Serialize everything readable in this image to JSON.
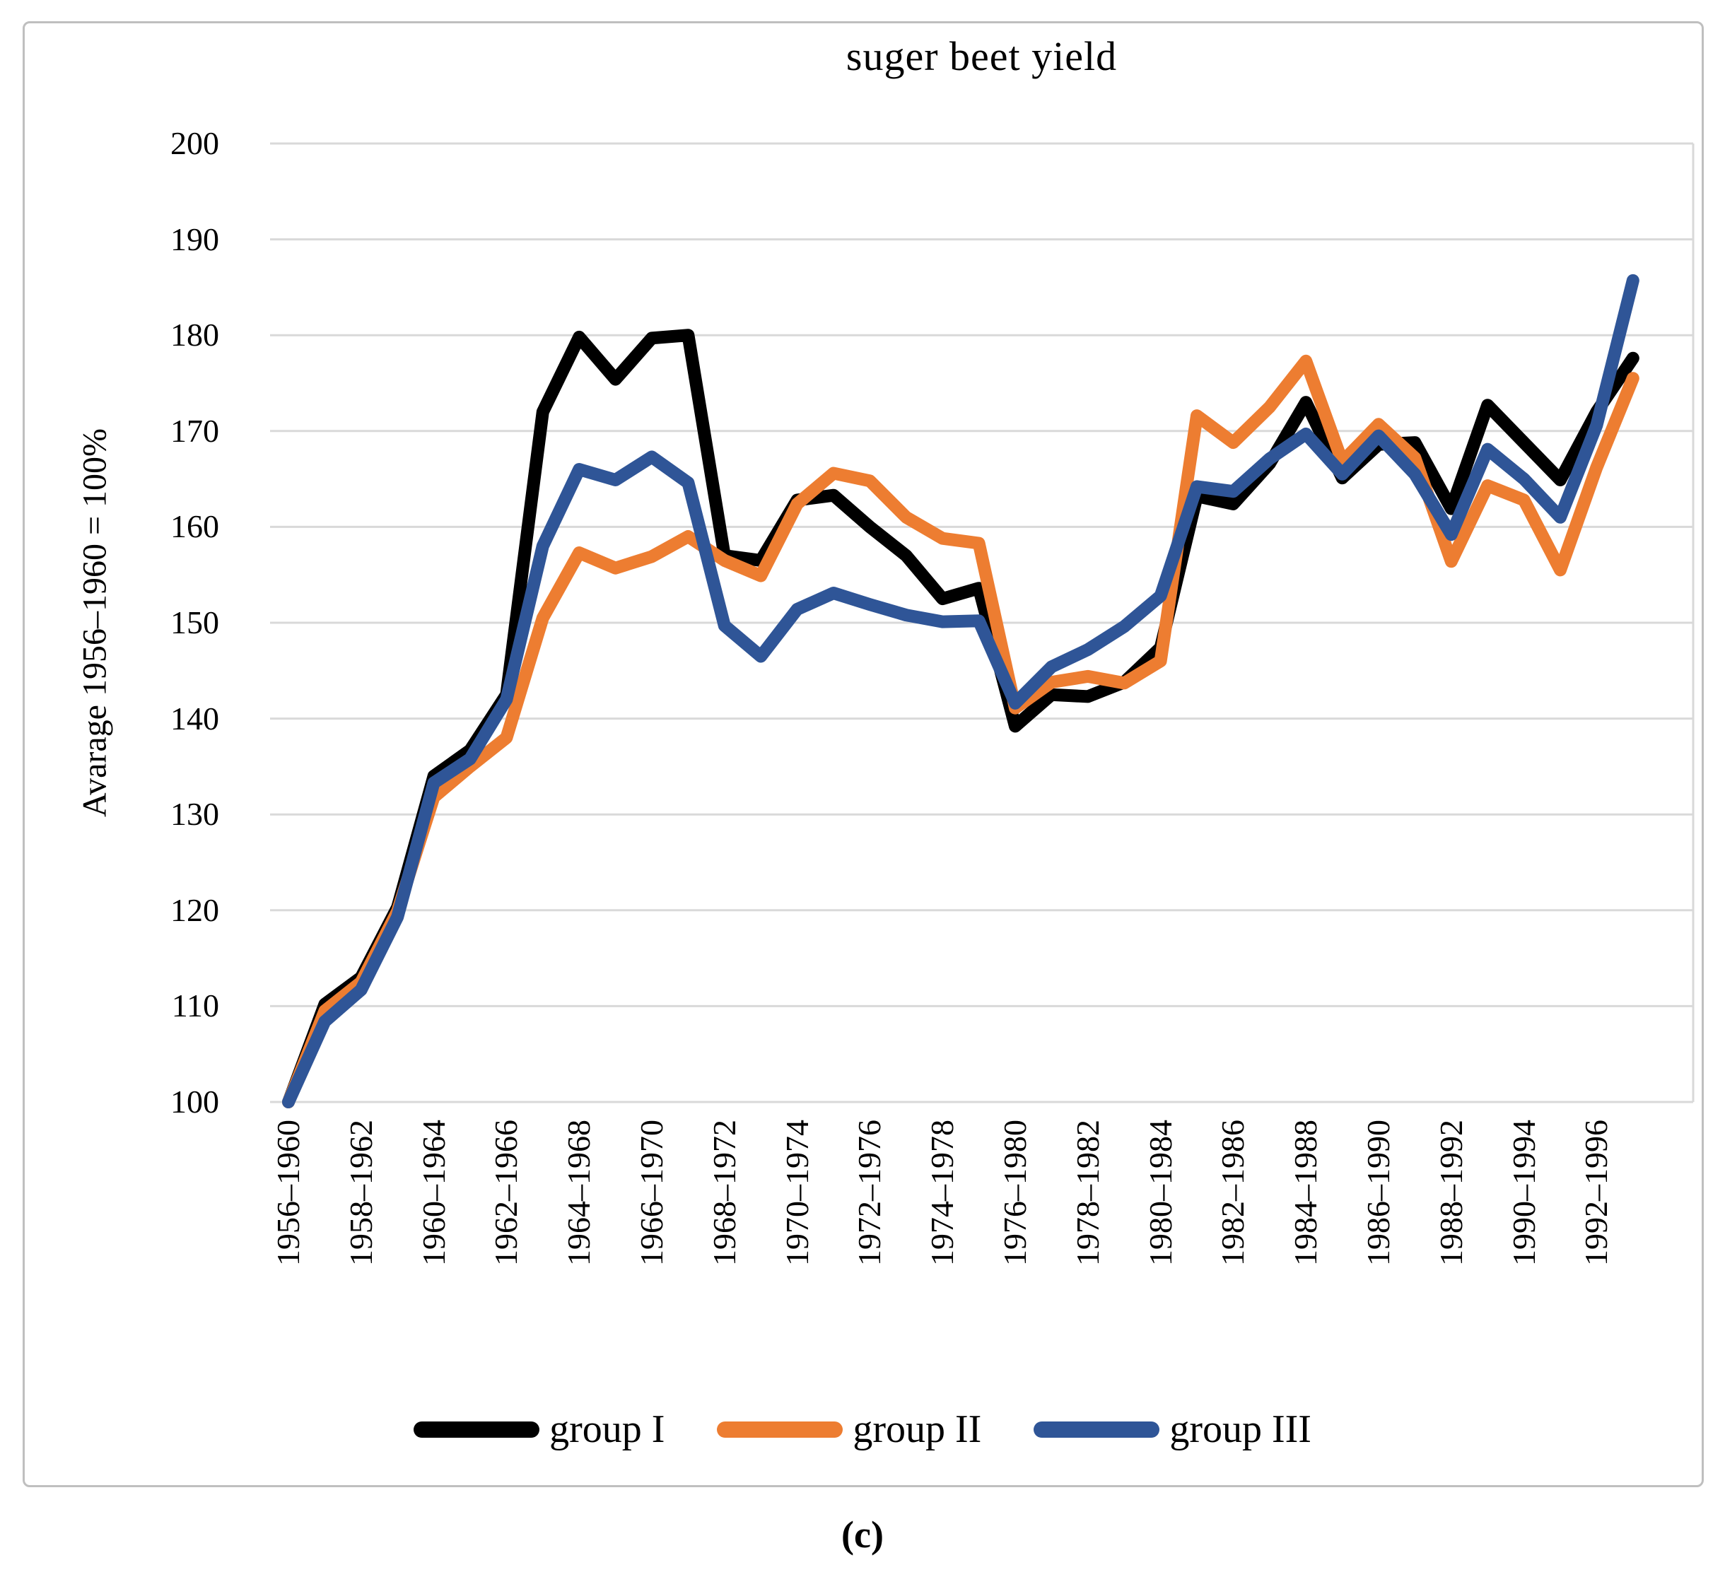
{
  "title": "suger beet yield",
  "caption": "(c)",
  "y_axis": {
    "title": "Avarage 1956–1960 = 100%",
    "tick_labels": [
      "200",
      "190",
      "180",
      "170",
      "160",
      "150",
      "140",
      "130",
      "120",
      "110",
      "100"
    ]
  },
  "legend": {
    "items": [
      {
        "label": "group I",
        "color": "#000000"
      },
      {
        "label": "group II",
        "color": "#ED7D31"
      },
      {
        "label": "group III",
        "color": "#2F5597"
      }
    ]
  },
  "colors": {
    "gridline": "#D9D9D9",
    "frame_border": "#BFBFBF",
    "background": "#FFFFFF",
    "text": "#000000"
  },
  "chart_data": {
    "type": "line",
    "title": "suger beet yield",
    "xlabel": "",
    "ylabel": "Avarage 1956–1960 = 100%",
    "ylim": [
      100,
      200
    ],
    "y_tick_step": 10,
    "grid": true,
    "legend_position": "bottom",
    "categories": [
      "1956–1960",
      "1957–1961",
      "1958–1962",
      "1959–1963",
      "1960–1964",
      "1961–1965",
      "1962–1966",
      "1963–1967",
      "1964–1968",
      "1965–1969",
      "1966–1970",
      "1967–1971",
      "1968–1972",
      "1969–1973",
      "1970–1974",
      "1971–1975",
      "1972–1976",
      "1973–1977",
      "1974–1978",
      "1975–1979",
      "1976–1980",
      "1977–1981",
      "1978–1982",
      "1979–1983",
      "1980–1984",
      "1981–1985",
      "1982–1986",
      "1983–1987",
      "1984–1988",
      "1985–1989",
      "1986–1990",
      "1987–1991",
      "1988–1992",
      "1989–1993",
      "1990–1994",
      "1991–1995",
      "1992–1996",
      "1993–1997"
    ],
    "x_tick_labels": [
      "1956–1960",
      "1958–1962",
      "1960–1964",
      "1962–1966",
      "1964–1968",
      "1966–1970",
      "1968–1972",
      "1970–1974",
      "1972–1976",
      "1974–1978",
      "1976–1980",
      "1978–1982",
      "1980–1984",
      "1982–1986",
      "1984–1988",
      "1986–1990",
      "1988–1992",
      "1990–1994",
      "1992–1996"
    ],
    "x_tick_every": 2,
    "series": [
      {
        "name": "group I",
        "color": "#000000",
        "values": [
          100,
          110.2,
          113.0,
          120.3,
          134.0,
          136.7,
          142.5,
          172.0,
          179.8,
          175.4,
          179.7,
          180.0,
          157.0,
          156.5,
          162.8,
          163.3,
          160.0,
          157.0,
          152.5,
          153.6,
          139.2,
          142.5,
          142.3,
          143.8,
          147.4,
          163.2,
          162.4,
          166.6,
          173.0,
          165.1,
          168.6,
          168.8,
          161.9,
          172.7,
          168.8,
          164.9,
          172.0,
          177.6
        ]
      },
      {
        "name": "group II",
        "color": "#ED7D31",
        "values": [
          100,
          109.5,
          112.5,
          119.9,
          131.8,
          135.0,
          138.0,
          150.5,
          157.3,
          155.7,
          156.9,
          159.0,
          156.5,
          154.9,
          162.4,
          165.6,
          164.8,
          161.0,
          158.8,
          158.3,
          141.1,
          143.8,
          144.4,
          143.7,
          146.0,
          171.6,
          168.8,
          172.5,
          177.3,
          166.8,
          170.7,
          167.2,
          156.4,
          164.3,
          162.8,
          155.5,
          166.2,
          175.5
        ]
      },
      {
        "name": "group III",
        "color": "#2F5597",
        "values": [
          100,
          108.4,
          111.7,
          119.3,
          133.3,
          135.8,
          142.0,
          158.0,
          166.0,
          164.9,
          167.3,
          164.6,
          149.7,
          146.5,
          151.4,
          153.1,
          151.9,
          150.8,
          150.1,
          150.2,
          141.6,
          145.4,
          147.2,
          149.6,
          152.8,
          164.2,
          163.7,
          167.1,
          169.7,
          165.5,
          169.5,
          165.5,
          159.2,
          168.1,
          165.0,
          161.0,
          170.6,
          185.7
        ]
      }
    ]
  }
}
